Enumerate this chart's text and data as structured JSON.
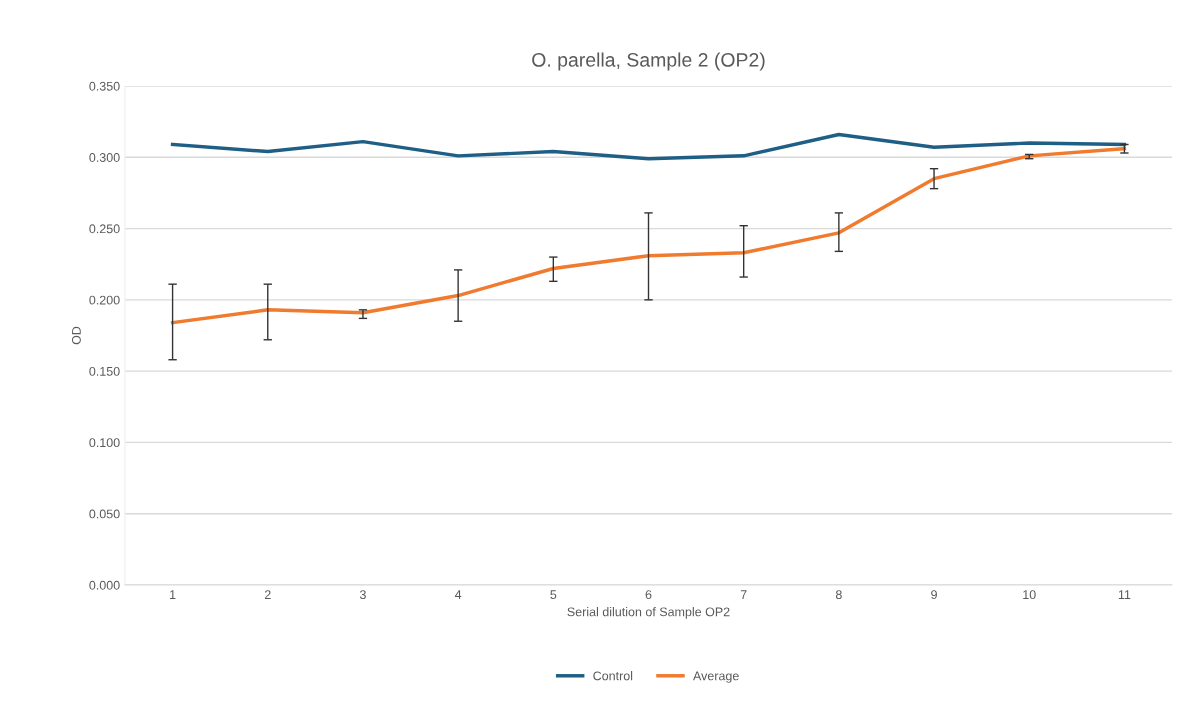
{
  "chart_data": {
    "type": "line",
    "title": "O. parella, Sample 2 (OP2)",
    "xlabel": "Serial dilution of Sample OP2",
    "ylabel": "OD",
    "categories": [
      "1",
      "2",
      "3",
      "4",
      "5",
      "6",
      "7",
      "8",
      "9",
      "10",
      "11"
    ],
    "series": [
      {
        "name": "Control",
        "color": "#1f5f85",
        "values": [
          0.309,
          0.304,
          0.311,
          0.301,
          0.304,
          0.299,
          0.301,
          0.316,
          0.307,
          0.31,
          0.309
        ]
      },
      {
        "name": "Average",
        "color": "#f07a2e",
        "values": [
          0.184,
          0.193,
          0.191,
          0.203,
          0.222,
          0.231,
          0.233,
          0.247,
          0.285,
          0.301,
          0.306
        ],
        "errors": [
          [
            0.158,
            0.211
          ],
          [
            0.172,
            0.211
          ],
          [
            0.187,
            0.193
          ],
          [
            0.185,
            0.221
          ],
          [
            0.213,
            0.23
          ],
          [
            0.2,
            0.261
          ],
          [
            0.216,
            0.252
          ],
          [
            0.234,
            0.261
          ],
          [
            0.278,
            0.292
          ],
          [
            0.299,
            0.302
          ],
          [
            0.303,
            0.309
          ]
        ]
      }
    ],
    "ylim": [
      0,
      0.35
    ],
    "yticks": [
      {
        "value": 0,
        "label": "0.000"
      },
      {
        "value": 0.05,
        "label": "0.050"
      },
      {
        "value": 0.1,
        "label": "0.100"
      },
      {
        "value": 0.15,
        "label": "0.150"
      },
      {
        "value": 0.2,
        "label": "0.200"
      },
      {
        "value": 0.25,
        "label": "0.250"
      },
      {
        "value": 0.3,
        "label": "0.300"
      },
      {
        "value": 0.35,
        "label": "0.350"
      }
    ],
    "grid": "y",
    "legend": "bottom",
    "marker": "none",
    "line_style": "solid"
  }
}
